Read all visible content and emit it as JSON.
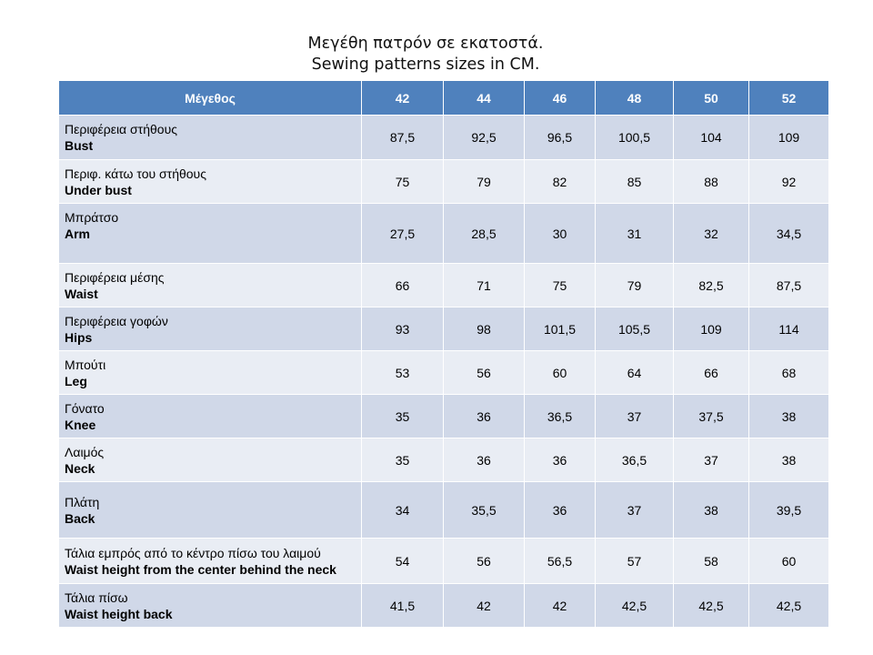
{
  "title": {
    "line1": "Μεγέθη πατρόν σε εκατοστά.",
    "line2": "Sewing patterns sizes in CM."
  },
  "table": {
    "header_label": "Μέγεθος",
    "sizes": [
      "42",
      "44",
      "46",
      "48",
      "50",
      "52"
    ],
    "rows": [
      {
        "gr": "Περιφέρεια στήθους",
        "en": "Bust",
        "values": [
          "87,5",
          "92,5",
          "96,5",
          "100,5",
          "104",
          "109"
        ]
      },
      {
        "gr": "Περιφ. κάτω του στήθους",
        "en": "Under bust",
        "values": [
          "75",
          "79",
          "82",
          "85",
          "88",
          "92"
        ]
      },
      {
        "gr": "Μπράτσο",
        "en": "Arm",
        "values": [
          "27,5",
          "28,5",
          "30",
          "31",
          "32",
          "34,5"
        ]
      },
      {
        "gr": "Περιφέρεια μέσης",
        "en": "Waist",
        "values": [
          "66",
          "71",
          "75",
          "79",
          "82,5",
          "87,5"
        ]
      },
      {
        "gr": "Περιφέρεια γοφών",
        "en": "Hips",
        "values": [
          "93",
          "98",
          "101,5",
          "105,5",
          "109",
          "114"
        ]
      },
      {
        "gr": "Μπούτι",
        "en": "Leg",
        "values": [
          "53",
          "56",
          "60",
          "64",
          "66",
          "68"
        ]
      },
      {
        "gr": "Γόνατο",
        "en": "Knee",
        "values": [
          "35",
          "36",
          "36,5",
          "37",
          "37,5",
          "38"
        ]
      },
      {
        "gr": "Λαιμός",
        "en": "Neck",
        "values": [
          "35",
          "36",
          "36",
          "36,5",
          "37",
          "38"
        ]
      },
      {
        "gr": "Πλάτη",
        "en": "Back",
        "values": [
          "34",
          "35,5",
          "36",
          "37",
          "38",
          "39,5"
        ]
      },
      {
        "gr": "Τάλια εμπρός από το κέντρο πίσω του λαιμού",
        "en": "Waist height from the center behind the neck",
        "values": [
          "54",
          "56",
          "56,5",
          "57",
          "58",
          "60"
        ]
      },
      {
        "gr": "Τάλια πίσω",
        "en": "Waist height back",
        "values": [
          "41,5",
          "42",
          "42",
          "42,5",
          "42,5",
          "42,5"
        ]
      }
    ]
  }
}
